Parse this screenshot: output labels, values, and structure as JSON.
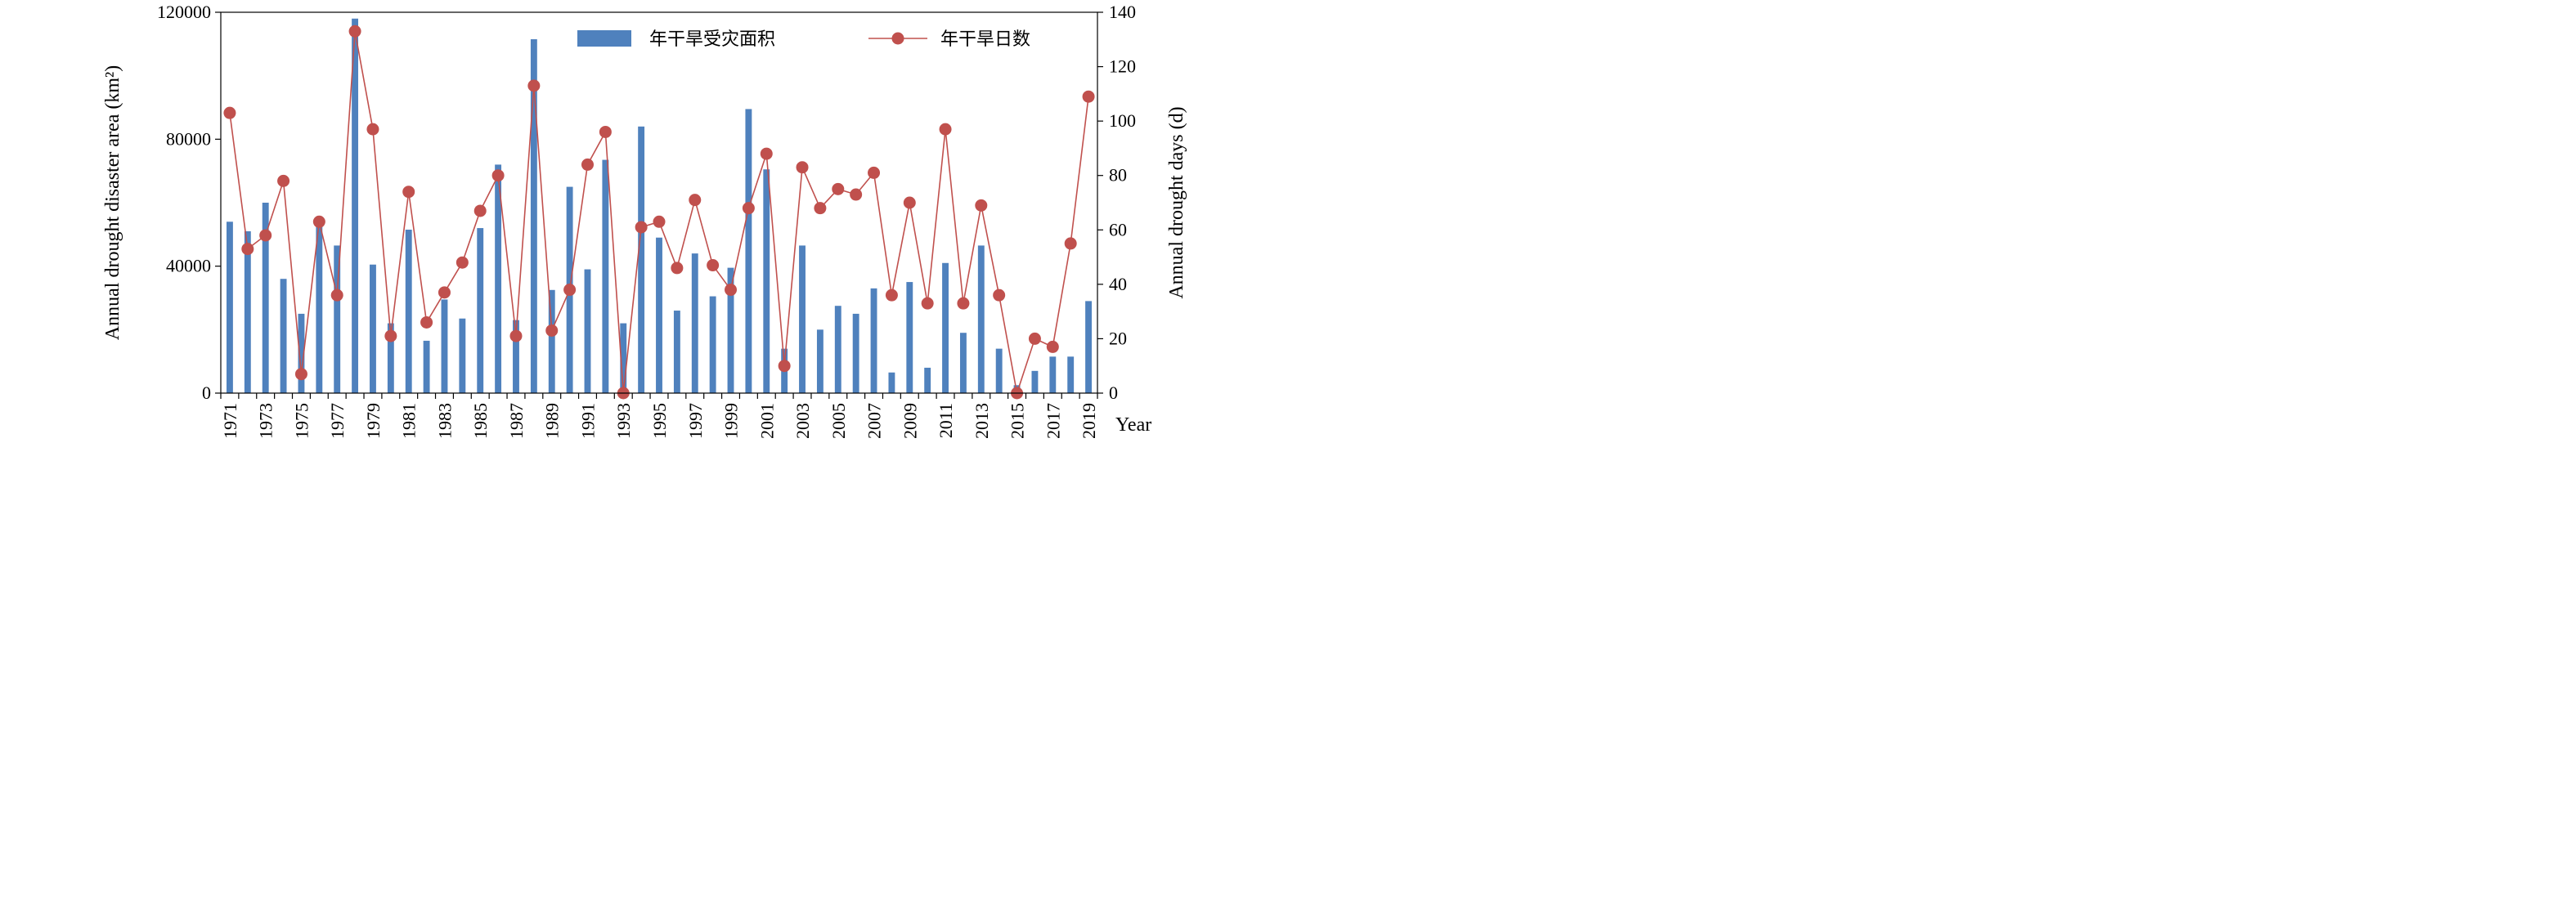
{
  "chart_data": {
    "type": "bar",
    "title": "",
    "categories": [
      "1971",
      "1972",
      "1973",
      "1974",
      "1975",
      "1976",
      "1977",
      "1978",
      "1979",
      "1980",
      "1981",
      "1982",
      "1983",
      "1984",
      "1985",
      "1986",
      "1987",
      "1988",
      "1989",
      "1990",
      "1991",
      "1992",
      "1993",
      "1994",
      "1995",
      "1996",
      "1997",
      "1998",
      "1999",
      "2000",
      "2001",
      "2002",
      "2003",
      "2004",
      "2005",
      "2006",
      "2007",
      "2008",
      "2009",
      "2010",
      "2011",
      "2012",
      "2013",
      "2014",
      "2015",
      "2016",
      "2017",
      "2018",
      "2019"
    ],
    "x_tick_labels": [
      "1971",
      "1973",
      "1975",
      "1977",
      "1979",
      "1981",
      "1983",
      "1985",
      "1987",
      "1989",
      "1991",
      "1993",
      "1995",
      "1997",
      "1999",
      "2001",
      "2003",
      "2005",
      "2007",
      "2009",
      "2011",
      "2013",
      "2015",
      "2017",
      "2019"
    ],
    "xlabel": "Year",
    "ylabel_left": "Annual drought disaster area (km²)",
    "ylabel_right": "Annual drought days (d)",
    "ylim_left": [
      0,
      120000
    ],
    "ylim_right": [
      0,
      140
    ],
    "yticks_left": [
      "0",
      "40000",
      "80000",
      "120000"
    ],
    "yticks_right": [
      "0",
      "20",
      "40",
      "60",
      "80",
      "100",
      "120",
      "140"
    ],
    "legend_position": "top-right",
    "grid": false,
    "series": [
      {
        "name": "年干旱受灾面积",
        "type": "bar",
        "axis": "left",
        "color": "#4f81bd",
        "values": [
          54000,
          51000,
          60000,
          36000,
          25000,
          53000,
          46500,
          118000,
          40500,
          22000,
          51500,
          16500,
          29500,
          23500,
          52000,
          72000,
          23000,
          111500,
          32500,
          65000,
          39000,
          73500,
          22000,
          84000,
          49000,
          26000,
          44000,
          30500,
          39500,
          89500,
          70500,
          14000,
          46500,
          20000,
          27500,
          25000,
          33000,
          6500,
          35000,
          8000,
          41000,
          19000,
          46500,
          14000,
          2500,
          7000,
          11500,
          11500,
          29000
        ]
      },
      {
        "name": "年干旱日数",
        "type": "line",
        "axis": "right",
        "color": "#c0504d",
        "values": [
          103,
          53,
          58,
          78,
          7,
          63,
          36,
          133,
          97,
          21,
          74,
          26,
          37,
          48,
          67,
          80,
          21,
          113,
          23,
          38,
          84,
          96,
          0,
          61,
          63,
          46,
          71,
          47,
          38,
          68,
          88,
          10,
          83,
          68,
          75,
          73,
          81,
          36,
          70,
          33,
          97,
          33,
          69,
          36,
          0,
          20,
          17,
          55,
          109
        ]
      }
    ]
  }
}
